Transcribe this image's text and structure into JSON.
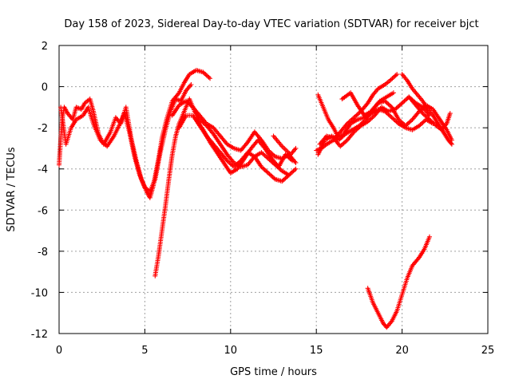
{
  "chart_data": {
    "type": "scatter",
    "title": "Day 158 of 2023, Sidereal Day-to-day VTEC variation (SDTVAR) for receiver bjct",
    "xlabel": "GPS time / hours",
    "ylabel": "SDTVAR / TECUs",
    "xlim": [
      0,
      25
    ],
    "ylim": [
      -12,
      2
    ],
    "xticks": [
      "0",
      "5",
      "10",
      "15",
      "20",
      "25"
    ],
    "yticks": [
      "-12",
      "-10",
      "-8",
      "-6",
      "-4",
      "-2",
      "0",
      "2"
    ],
    "grid": true,
    "marker": "plus",
    "color": "#ff0000",
    "series": [
      {
        "points": [
          [
            0,
            -3.8
          ],
          [
            0.1,
            -2.5
          ],
          [
            0.2,
            -1.5
          ],
          [
            0.3,
            -1.0
          ],
          [
            0.5,
            -1.3
          ],
          [
            0.8,
            -1.6
          ],
          [
            1.0,
            -1.0
          ],
          [
            1.3,
            -1.1
          ],
          [
            1.5,
            -0.8
          ],
          [
            1.8,
            -0.6
          ],
          [
            2.0,
            -1.2
          ],
          [
            2.3,
            -2.3
          ],
          [
            2.6,
            -2.8
          ],
          [
            3.0,
            -2.2
          ],
          [
            3.3,
            -1.5
          ],
          [
            3.6,
            -1.8
          ],
          [
            3.9,
            -1.0
          ],
          [
            4.2,
            -2.5
          ],
          [
            4.5,
            -3.6
          ],
          [
            4.8,
            -4.5
          ],
          [
            5.1,
            -5.1
          ],
          [
            5.3,
            -5.4
          ],
          [
            5.5,
            -4.8
          ],
          [
            5.8,
            -3.5
          ],
          [
            6.0,
            -2.5
          ],
          [
            6.3,
            -1.5
          ],
          [
            6.6,
            -0.7
          ],
          [
            7.0,
            -0.3
          ],
          [
            7.3,
            0.2
          ],
          [
            7.6,
            0.6
          ],
          [
            8.0,
            0.8
          ],
          [
            8.4,
            0.7
          ],
          [
            8.8,
            0.4
          ]
        ]
      },
      {
        "points": [
          [
            0.1,
            -1.0
          ],
          [
            0.4,
            -2.8
          ],
          [
            0.7,
            -2.0
          ],
          [
            1.0,
            -1.6
          ],
          [
            1.4,
            -1.4
          ],
          [
            1.7,
            -1.0
          ],
          [
            2.0,
            -1.8
          ],
          [
            2.4,
            -2.6
          ],
          [
            2.8,
            -2.9
          ],
          [
            3.2,
            -2.4
          ],
          [
            3.5,
            -1.9
          ],
          [
            3.8,
            -1.3
          ],
          [
            4.1,
            -2.2
          ],
          [
            4.4,
            -3.4
          ],
          [
            4.7,
            -4.3
          ],
          [
            5.0,
            -4.9
          ],
          [
            5.3,
            -5.1
          ],
          [
            5.6,
            -4.5
          ],
          [
            5.9,
            -3.2
          ],
          [
            6.2,
            -2.1
          ],
          [
            6.5,
            -1.2
          ],
          [
            6.8,
            -0.6
          ],
          [
            7.1,
            -0.7
          ],
          [
            7.4,
            -0.2
          ],
          [
            7.7,
            0.1
          ]
        ]
      },
      {
        "points": [
          [
            5.6,
            -9.2
          ],
          [
            5.8,
            -8.2
          ],
          [
            6.0,
            -7.0
          ],
          [
            6.2,
            -5.8
          ],
          [
            6.4,
            -4.5
          ],
          [
            6.6,
            -3.3
          ],
          [
            6.8,
            -2.4
          ],
          [
            7.0,
            -1.8
          ],
          [
            7.3,
            -1.2
          ],
          [
            7.6,
            -0.6
          ],
          [
            7.9,
            -1.2
          ],
          [
            8.2,
            -1.6
          ],
          [
            8.6,
            -1.9
          ],
          [
            9.0,
            -2.3
          ],
          [
            9.4,
            -2.8
          ],
          [
            9.8,
            -3.3
          ],
          [
            10.2,
            -3.7
          ],
          [
            10.6,
            -3.9
          ],
          [
            11.0,
            -3.8
          ],
          [
            11.4,
            -3.4
          ],
          [
            11.8,
            -3.2
          ],
          [
            12.2,
            -3.5
          ],
          [
            12.6,
            -3.8
          ],
          [
            13.0,
            -4.1
          ],
          [
            13.4,
            -4.3
          ],
          [
            13.8,
            -4.0
          ]
        ]
      },
      {
        "points": [
          [
            6.6,
            -1.4
          ],
          [
            7.0,
            -0.9
          ],
          [
            7.4,
            -0.7
          ],
          [
            7.8,
            -1.0
          ],
          [
            8.2,
            -1.4
          ],
          [
            8.6,
            -1.8
          ],
          [
            9.0,
            -2.0
          ],
          [
            9.4,
            -2.4
          ],
          [
            9.8,
            -2.8
          ],
          [
            10.2,
            -3.0
          ],
          [
            10.6,
            -3.1
          ],
          [
            11.0,
            -2.7
          ],
          [
            11.4,
            -2.2
          ],
          [
            11.8,
            -2.6
          ],
          [
            12.2,
            -3.1
          ],
          [
            12.6,
            -3.4
          ],
          [
            13.0,
            -3.5
          ],
          [
            13.4,
            -3.3
          ],
          [
            13.8,
            -3.7
          ]
        ]
      },
      {
        "points": [
          [
            7.0,
            -2.0
          ],
          [
            7.4,
            -1.4
          ],
          [
            7.8,
            -1.4
          ],
          [
            8.2,
            -1.9
          ],
          [
            8.6,
            -2.4
          ],
          [
            9.0,
            -2.8
          ],
          [
            9.4,
            -3.2
          ],
          [
            9.8,
            -3.6
          ],
          [
            10.2,
            -3.9
          ],
          [
            10.6,
            -3.6
          ],
          [
            11.0,
            -3.2
          ],
          [
            11.4,
            -3.4
          ],
          [
            11.8,
            -3.9
          ],
          [
            12.2,
            -4.2
          ],
          [
            12.6,
            -4.5
          ],
          [
            13.0,
            -4.6
          ],
          [
            13.4,
            -4.3
          ]
        ]
      },
      {
        "points": [
          [
            8.0,
            -1.6
          ],
          [
            8.4,
            -2.1
          ],
          [
            8.8,
            -2.7
          ],
          [
            9.2,
            -3.2
          ],
          [
            9.6,
            -3.7
          ],
          [
            10.0,
            -4.2
          ],
          [
            10.4,
            -4.0
          ],
          [
            10.8,
            -3.5
          ],
          [
            11.2,
            -3.0
          ],
          [
            11.6,
            -2.6
          ],
          [
            12.0,
            -3.0
          ],
          [
            12.4,
            -3.5
          ],
          [
            12.8,
            -3.9
          ],
          [
            13.2,
            -3.3
          ],
          [
            13.6,
            -3.6
          ]
        ]
      },
      {
        "points": [
          [
            12.5,
            -2.4
          ],
          [
            13.0,
            -2.9
          ],
          [
            13.5,
            -3.3
          ],
          [
            13.8,
            -3.0
          ]
        ]
      },
      {
        "points": [
          [
            15.0,
            -3.1
          ],
          [
            15.3,
            -3.0
          ],
          [
            15.6,
            -2.8
          ],
          [
            16.0,
            -2.6
          ],
          [
            16.4,
            -2.2
          ],
          [
            16.8,
            -1.8
          ],
          [
            17.2,
            -1.5
          ],
          [
            17.6,
            -1.2
          ],
          [
            18.0,
            -0.8
          ],
          [
            18.3,
            -0.4
          ],
          [
            18.6,
            -0.1
          ],
          [
            19.0,
            0.1
          ],
          [
            19.3,
            0.3
          ],
          [
            19.7,
            0.6
          ]
        ]
      },
      {
        "points": [
          [
            15.1,
            -3.3
          ],
          [
            15.5,
            -2.6
          ],
          [
            15.9,
            -2.4
          ],
          [
            16.3,
            -2.6
          ],
          [
            16.7,
            -2.3
          ],
          [
            17.1,
            -2.1
          ],
          [
            17.5,
            -1.9
          ],
          [
            17.9,
            -1.6
          ],
          [
            18.3,
            -1.1
          ],
          [
            18.7,
            -0.7
          ],
          [
            19.1,
            -0.5
          ],
          [
            19.5,
            -0.3
          ]
        ]
      },
      {
        "points": [
          [
            15.2,
            -2.8
          ],
          [
            15.6,
            -2.4
          ],
          [
            16.0,
            -2.5
          ],
          [
            16.4,
            -2.9
          ],
          [
            16.8,
            -2.6
          ],
          [
            17.2,
            -2.2
          ],
          [
            17.6,
            -1.9
          ],
          [
            18.0,
            -1.7
          ],
          [
            18.4,
            -1.4
          ],
          [
            18.8,
            -1.0
          ],
          [
            19.2,
            -1.2
          ],
          [
            19.6,
            -1.1
          ],
          [
            20.0,
            -0.8
          ],
          [
            20.4,
            -0.5
          ],
          [
            20.8,
            -0.8
          ],
          [
            21.2,
            -1.0
          ],
          [
            21.6,
            -1.4
          ]
        ]
      },
      {
        "points": [
          [
            15.1,
            -0.4
          ],
          [
            15.4,
            -1.0
          ],
          [
            15.7,
            -1.6
          ],
          [
            16.0,
            -2.0
          ],
          [
            16.3,
            -2.5
          ],
          [
            16.6,
            -2.3
          ],
          [
            17.0,
            -1.8
          ],
          [
            17.4,
            -1.6
          ],
          [
            17.8,
            -1.5
          ],
          [
            18.2,
            -1.3
          ],
          [
            18.6,
            -1.1
          ],
          [
            19.0,
            -1.2
          ],
          [
            19.4,
            -1.5
          ],
          [
            19.8,
            -1.8
          ],
          [
            20.2,
            -2.0
          ],
          [
            20.6,
            -2.1
          ],
          [
            21.0,
            -1.9
          ],
          [
            21.4,
            -1.6
          ],
          [
            21.8,
            -1.8
          ]
        ]
      },
      {
        "points": [
          [
            16.5,
            -0.6
          ],
          [
            17.0,
            -0.3
          ],
          [
            17.4,
            -0.9
          ],
          [
            17.8,
            -1.4
          ],
          [
            18.2,
            -1.2
          ],
          [
            18.6,
            -0.8
          ],
          [
            19.0,
            -0.7
          ],
          [
            19.4,
            -1.0
          ],
          [
            19.8,
            -1.6
          ],
          [
            20.2,
            -1.9
          ],
          [
            20.6,
            -1.6
          ],
          [
            21.0,
            -1.2
          ],
          [
            21.4,
            -0.9
          ],
          [
            21.8,
            -1.1
          ],
          [
            22.2,
            -1.6
          ],
          [
            22.6,
            -2.1
          ],
          [
            22.9,
            -2.6
          ]
        ]
      },
      {
        "points": [
          [
            20.0,
            0.6
          ],
          [
            20.3,
            0.3
          ],
          [
            20.6,
            -0.1
          ],
          [
            20.9,
            -0.4
          ],
          [
            21.2,
            -0.7
          ],
          [
            21.5,
            -1.1
          ],
          [
            21.8,
            -1.4
          ],
          [
            22.1,
            -1.8
          ],
          [
            22.4,
            -2.2
          ],
          [
            22.7,
            -2.6
          ],
          [
            22.9,
            -2.8
          ]
        ]
      },
      {
        "points": [
          [
            20.4,
            -0.5
          ],
          [
            20.8,
            -0.9
          ],
          [
            21.2,
            -1.3
          ],
          [
            21.6,
            -1.6
          ],
          [
            22.0,
            -1.9
          ],
          [
            22.3,
            -2.1
          ],
          [
            22.6,
            -1.8
          ],
          [
            22.8,
            -1.3
          ]
        ]
      },
      {
        "points": [
          [
            18.0,
            -9.8
          ],
          [
            18.3,
            -10.5
          ],
          [
            18.6,
            -11.0
          ],
          [
            18.9,
            -11.5
          ],
          [
            19.1,
            -11.7
          ],
          [
            19.4,
            -11.4
          ],
          [
            19.7,
            -10.9
          ],
          [
            20.0,
            -10.1
          ],
          [
            20.3,
            -9.3
          ],
          [
            20.6,
            -8.7
          ],
          [
            21.0,
            -8.3
          ],
          [
            21.3,
            -7.9
          ],
          [
            21.6,
            -7.3
          ]
        ]
      }
    ]
  }
}
